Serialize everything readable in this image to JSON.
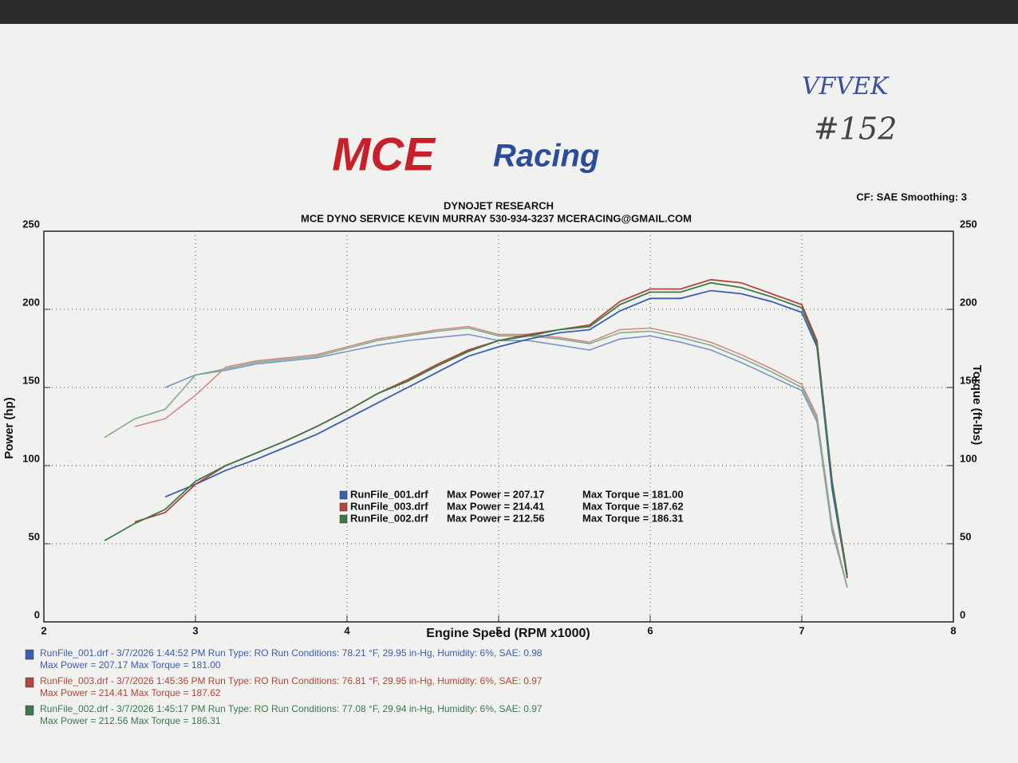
{
  "chart_data": {
    "type": "line",
    "logo": {
      "mce": "MCE",
      "racing": "Racing"
    },
    "annotations": [
      "VFVEK",
      "#152"
    ],
    "title": "DYNOJET RESEARCH",
    "subtitle": "MCE DYNO SERVICE KEVIN MURRAY 530-934-3237 MCERACING@GMAIL.COM",
    "settings_note": "CF: SAE  Smoothing: 3",
    "x_label": "Engine Speed (RPM x1000)",
    "y_label": "Power (hp)",
    "y2_label": "Torque (ft-lbs)",
    "xlim": [
      2,
      8
    ],
    "xticks": [
      2,
      3,
      4,
      5,
      6,
      7,
      8
    ],
    "ylim": [
      0,
      250
    ],
    "yticks": [
      0,
      50,
      100,
      150,
      200,
      250
    ],
    "y2lim": [
      0,
      250
    ],
    "y2ticks": [
      0,
      50,
      100,
      150,
      200,
      250
    ],
    "grid": true,
    "x": [
      2.4,
      2.6,
      2.8,
      3.0,
      3.2,
      3.4,
      3.6,
      3.8,
      4.0,
      4.2,
      4.4,
      4.6,
      4.8,
      5.0,
      5.2,
      5.4,
      5.6,
      5.8,
      6.0,
      6.2,
      6.4,
      6.6,
      6.8,
      7.0,
      7.1,
      7.2,
      7.3
    ],
    "series": [
      {
        "name": "RunFile_001.drf",
        "color": "#3a5fb0",
        "max_power": "Max Power = 207.17",
        "max_torque": "Max Torque = 181.00",
        "values": [
          null,
          null,
          80,
          88,
          97,
          104,
          112,
          120,
          130,
          140,
          150,
          160,
          170,
          176,
          181,
          185,
          187,
          199,
          207,
          207,
          212,
          210,
          205,
          198,
          176,
          85,
          28
        ]
      },
      {
        "name": "RunFile_003.drf",
        "color": "#b5443c",
        "max_power": "Max Power = 214.41",
        "max_torque": "Max Torque = 187.62",
        "values": [
          null,
          64,
          70,
          88,
          100,
          108,
          116,
          125,
          135,
          146,
          155,
          165,
          174,
          180,
          184,
          187,
          190,
          205,
          213,
          213,
          219,
          217,
          210,
          203,
          180,
          90,
          28
        ]
      },
      {
        "name": "RunFile_002.drf",
        "color": "#3d7a4a",
        "max_power": "Max Power = 212.56",
        "max_torque": "Max Torque = 186.31",
        "values": [
          52,
          63,
          72,
          90,
          100,
          108,
          116,
          125,
          135,
          146,
          154,
          164,
          173,
          180,
          183,
          187,
          189,
          203,
          211,
          211,
          217,
          214,
          208,
          201,
          178,
          90,
          30
        ]
      }
    ],
    "torque_series": [
      {
        "axis": "y2",
        "color": "#7d95c8",
        "values": [
          null,
          null,
          150,
          158,
          161,
          165,
          167,
          169,
          173,
          177,
          180,
          182,
          184,
          180,
          180,
          177,
          174,
          181,
          183,
          179,
          174,
          166,
          157,
          148,
          128,
          58,
          22
        ]
      },
      {
        "axis": "y2",
        "color": "#cf8a84",
        "values": [
          null,
          125,
          130,
          145,
          163,
          167,
          169,
          171,
          176,
          181,
          184,
          187,
          189,
          184,
          184,
          182,
          179,
          187,
          188,
          184,
          179,
          171,
          162,
          152,
          132,
          62,
          22
        ]
      },
      {
        "axis": "y2",
        "color": "#82ad8a",
        "values": [
          118,
          130,
          136,
          158,
          162,
          166,
          168,
          170,
          175,
          180,
          183,
          186,
          188,
          183,
          183,
          181,
          178,
          185,
          186,
          182,
          177,
          169,
          160,
          150,
          130,
          60,
          22
        ]
      }
    ],
    "run_details": [
      {
        "info": "RunFile_001.drf - 3/7/2026 1:44:52 PM  Run Type: RO  Run Conditions: 78.21 °F, 29.95 in-Hg,  Humidity:  6%, SAE: 0.98",
        "max": "Max Power = 207.17  Max Torque = 181.00"
      },
      {
        "info": "RunFile_003.drf - 3/7/2026 1:45:36 PM  Run Type: RO  Run Conditions: 76.81 °F, 29.95 in-Hg,  Humidity:  6%, SAE: 0.97",
        "max": "Max Power = 214.41  Max Torque = 187.62"
      },
      {
        "info": "RunFile_002.drf - 3/7/2026 1:45:17 PM  Run Type: RO  Run Conditions: 77.08 °F, 29.94 in-Hg,  Humidity:  6%, SAE: 0.97",
        "max": "Max Power = 212.56  Max Torque = 186.31"
      }
    ]
  }
}
